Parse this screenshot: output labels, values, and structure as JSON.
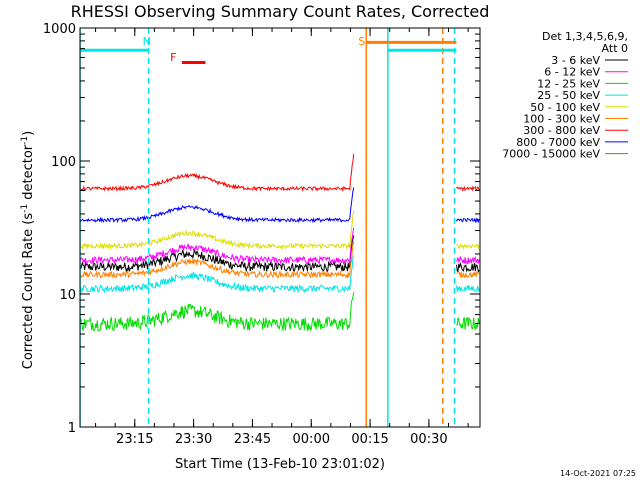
{
  "chart_data": {
    "type": "line",
    "title": "RHESSI Observing Summary Count Rates, Corrected",
    "xlabel": "Start Time (13-Feb-10 23:01:02)",
    "ylabel_main": "Corrected Count Rate (s",
    "ylabel_sup1": "-1",
    "ylabel_mid": " detector",
    "ylabel_sup2": "-1",
    "ylabel_end": ")",
    "yscale": "log",
    "ylim": [
      1,
      1000
    ],
    "xlim_min": [
      0,
      102
    ],
    "y_ticks": [
      {
        "value": 1,
        "label": "1"
      },
      {
        "value": 10,
        "label": "10"
      },
      {
        "value": 100,
        "label": "100"
      },
      {
        "value": 1000,
        "label": "1000"
      }
    ],
    "x_ticks": [
      {
        "value": 13.97,
        "label": "23:15"
      },
      {
        "value": 28.97,
        "label": "23:30"
      },
      {
        "value": 43.97,
        "label": "23:45"
      },
      {
        "value": 58.97,
        "label": "00:00"
      },
      {
        "value": 73.97,
        "label": "00:15"
      },
      {
        "value": 88.97,
        "label": "00:30"
      }
    ],
    "legend": {
      "position": "top-right",
      "header1": "Det 1,3,4,5,6,9,",
      "header2": "Att 0"
    },
    "series": [
      {
        "name": "3 - 6 keV",
        "color": "#000000",
        "segments": [
          [
            0,
            70,
            16
          ],
          [
            96,
            102,
            16
          ]
        ],
        "noise": 0.08
      },
      {
        "name": "6 - 12 keV",
        "color": "#ff00ff",
        "segments": [
          [
            0,
            70,
            18
          ],
          [
            96,
            102,
            18
          ]
        ],
        "noise": 0.06
      },
      {
        "name": "12 - 25 keV",
        "color": "#00dd00",
        "segments": [
          [
            0,
            70,
            6
          ],
          [
            96,
            102,
            6
          ]
        ],
        "noise": 0.12
      },
      {
        "name": "25 - 50 keV",
        "color": "#00e5e5",
        "segments": [
          [
            0,
            70,
            11
          ],
          [
            96,
            102,
            11
          ]
        ],
        "noise": 0.06
      },
      {
        "name": "50 - 100 keV",
        "color": "#dddd00",
        "segments": [
          [
            0,
            70,
            23
          ],
          [
            96,
            102,
            23
          ]
        ],
        "noise": 0.04
      },
      {
        "name": "100 - 300 keV",
        "color": "#ff8000",
        "segments": [
          [
            0,
            70,
            14
          ],
          [
            96,
            102,
            14
          ]
        ],
        "noise": 0.05
      },
      {
        "name": "300 - 800 keV",
        "color": "#ff0000",
        "segments": [
          [
            0,
            70,
            62
          ],
          [
            96,
            102,
            62
          ]
        ],
        "noise": 0.03
      },
      {
        "name": "800 - 7000 keV",
        "color": "#0000ff",
        "segments": [
          [
            0,
            70,
            36
          ],
          [
            96,
            102,
            36
          ]
        ],
        "noise": 0.03
      },
      {
        "name": "7000 - 15000 keV",
        "color": "#808000",
        "segments": [],
        "noise": 0.03
      }
    ],
    "annotations": [
      {
        "label": "N",
        "color": "#00e5e5",
        "x": 17.5
      },
      {
        "label": "F",
        "color": "#ff0000",
        "x": 24.5
      },
      {
        "label": "S",
        "color": "#ff8000",
        "x": 72.5
      }
    ],
    "event_lines": [
      {
        "x": 0,
        "color": "#00e5e5",
        "style": "solid"
      },
      {
        "x": 17.5,
        "color": "#00e5e5",
        "style": "dashed"
      },
      {
        "x": 73.0,
        "color": "#ff8000",
        "style": "solid"
      },
      {
        "x": 78.5,
        "color": "#00e5e5",
        "style": "solid"
      },
      {
        "x": 92.5,
        "color": "#ff8000",
        "style": "dashed"
      },
      {
        "x": 95.5,
        "color": "#00e5e5",
        "style": "dashed"
      }
    ],
    "flag_bars": [
      {
        "color": "#00e5e5",
        "x0": 0,
        "x1": 17.5,
        "y": 680
      },
      {
        "color": "#ff0000",
        "x0": 26,
        "x1": 32,
        "y": 550
      },
      {
        "color": "#ff8000",
        "x0": 73,
        "x1": 96,
        "y": 780
      },
      {
        "color": "#00e5e5",
        "x0": 78.5,
        "x1": 96,
        "y": 680
      }
    ]
  },
  "footer": {
    "timestamp": "14-Oct-2021 07:25"
  }
}
